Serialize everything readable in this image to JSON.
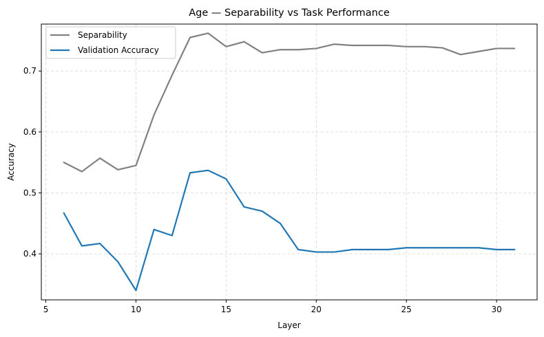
{
  "chart_data": {
    "type": "line",
    "title": "Age — Separability vs Task Performance",
    "xlabel": "Layer",
    "ylabel": "Accuracy",
    "xlim": [
      4.75,
      32.25
    ],
    "ylim": [
      0.3245,
      0.777
    ],
    "xticks": [
      5,
      10,
      15,
      20,
      25,
      30
    ],
    "yticks": [
      0.4,
      0.5,
      0.6,
      0.7
    ],
    "grid": true,
    "legend_position": "top-left",
    "x": [
      6,
      7,
      8,
      9,
      10,
      11,
      12,
      13,
      14,
      15,
      16,
      17,
      18,
      19,
      20,
      21,
      22,
      23,
      24,
      25,
      26,
      27,
      28,
      29,
      30,
      31
    ],
    "series": [
      {
        "name": "Separability",
        "color": "#808080",
        "values": [
          0.55,
          0.535,
          0.557,
          0.538,
          0.545,
          0.628,
          0.693,
          0.755,
          0.762,
          0.74,
          0.748,
          0.73,
          0.735,
          0.735,
          0.737,
          0.744,
          0.742,
          0.742,
          0.742,
          0.74,
          0.74,
          0.738,
          0.727,
          0.732,
          0.737,
          0.737
        ]
      },
      {
        "name": "Validation Accuracy",
        "color": "#1f77b4",
        "values": [
          0.467,
          0.413,
          0.417,
          0.387,
          0.34,
          0.44,
          0.43,
          0.533,
          0.537,
          0.523,
          0.477,
          0.47,
          0.45,
          0.407,
          0.403,
          0.403,
          0.407,
          0.407,
          0.407,
          0.41,
          0.41,
          0.41,
          0.41,
          0.41,
          0.407,
          0.407
        ]
      }
    ]
  }
}
